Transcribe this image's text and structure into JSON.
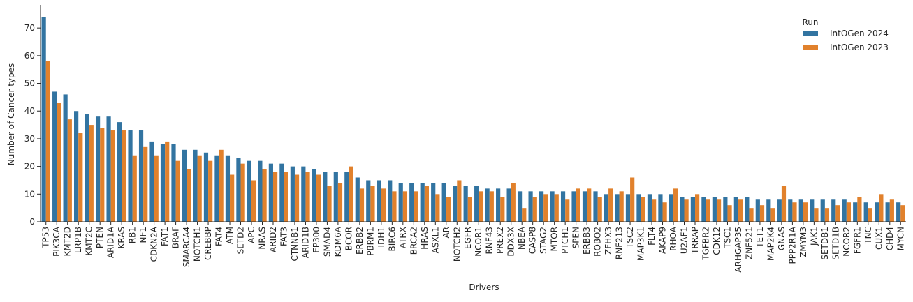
{
  "chart_data": {
    "type": "grouped_bar",
    "x_label": "Drivers",
    "y_label": "Number of Cancer types",
    "legend_title": "Run",
    "legend_position": "upper right",
    "categories": [
      "TP53",
      "PIK3CA",
      "KMT2D",
      "LRP1B",
      "KMT2C",
      "PTEN",
      "ARID1A",
      "KRAS",
      "RB1",
      "NF1",
      "CDKN2A",
      "FAT1",
      "BRAF",
      "SMARCA4",
      "NOTCH1",
      "CREBBP",
      "FAT4",
      "ATM",
      "SETD2",
      "APC",
      "NRAS",
      "ARID2",
      "FAT3",
      "CTNNB1",
      "ARID1B",
      "EP300",
      "SMAD4",
      "KDM6A",
      "BCOR",
      "ERBB2",
      "PBRM1",
      "IDH1",
      "BIRC6",
      "ATRX",
      "BRCA2",
      "HRAS",
      "ASXL1",
      "AR",
      "NOTCH2",
      "EGFR",
      "NCOR1",
      "RNF43",
      "PREX2",
      "DDX3X",
      "NBEA",
      "CASP8",
      "STAG2",
      "MTOR",
      "PTCH1",
      "SPEN",
      "ERBB3",
      "ROBO2",
      "ZFHX3",
      "RNF213",
      "TSC2",
      "MAP3K1",
      "FLT4",
      "AKAP9",
      "RHOA",
      "U2AF1",
      "TRRAP",
      "TGFBR2",
      "CDK12",
      "TSC1",
      "ARHGAP35",
      "ZNF521",
      "TET1",
      "MAP2K4",
      "GNAS",
      "PPP2R1A",
      "ZMYM3",
      "JAK1",
      "SETDB1",
      "SETD1B",
      "NCOR2",
      "FGFR1",
      "TNC",
      "CUX1",
      "CHD4",
      "MYCN"
    ],
    "series": [
      {
        "name": "IntOGen 2024",
        "color": "#3274a1",
        "values": [
          74,
          47,
          46,
          40,
          39,
          38,
          38,
          36,
          33,
          33,
          29,
          28,
          28,
          26,
          26,
          25,
          24,
          24,
          23,
          22,
          22,
          21,
          21,
          20,
          20,
          19,
          18,
          18,
          18,
          16,
          15,
          15,
          15,
          14,
          14,
          14,
          14,
          14,
          13,
          13,
          13,
          12,
          12,
          12,
          11,
          11,
          11,
          11,
          11,
          11,
          11,
          11,
          10,
          10,
          10,
          10,
          10,
          10,
          10,
          9,
          9,
          9,
          9,
          9,
          9,
          9,
          8,
          8,
          8,
          8,
          8,
          8,
          8,
          8,
          8,
          7,
          7,
          7,
          7,
          7
        ]
      },
      {
        "name": "IntOGen 2023",
        "color": "#e1812c",
        "values": [
          58,
          43,
          37,
          32,
          35,
          34,
          33,
          33,
          24,
          27,
          24,
          29,
          22,
          19,
          24,
          22,
          26,
          17,
          21,
          15,
          19,
          18,
          18,
          17,
          18,
          17,
          13,
          14,
          20,
          12,
          13,
          12,
          11,
          11,
          11,
          13,
          10,
          9,
          15,
          9,
          11,
          11,
          9,
          14,
          5,
          9,
          10,
          10,
          8,
          12,
          12,
          9,
          12,
          11,
          16,
          9,
          8,
          7,
          12,
          8,
          10,
          8,
          8,
          6,
          8,
          5,
          6,
          5,
          13,
          7,
          7,
          5,
          5,
          6,
          7,
          9,
          5,
          10,
          8,
          6
        ]
      }
    ],
    "ylim": [
      0,
      77.6
    ],
    "yticks": [
      0,
      10,
      20,
      30,
      40,
      50,
      60,
      70
    ]
  }
}
